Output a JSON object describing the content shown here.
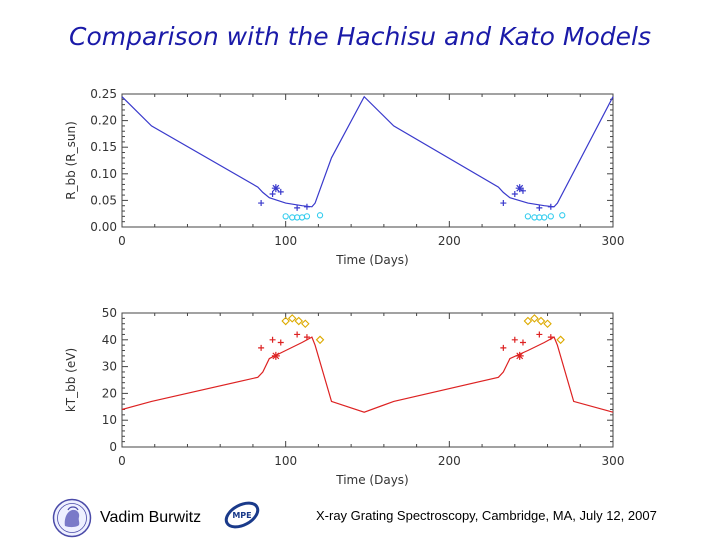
{
  "page": {
    "title": "Comparison with the Hachisu and Kato Models"
  },
  "footer": {
    "author": "Vadim Burwitz",
    "conference": "X-ray Grating Spectroscopy, Cambridge, MA, July 12, 2007",
    "logo_right_text": "MPE"
  },
  "colors": {
    "title": "#1a1aa8",
    "top_model": "#3a3acc",
    "bottom_model": "#dd2222",
    "cyan": "#33ccee",
    "gold": "#ddaa00"
  },
  "chart_data": [
    {
      "type": "line",
      "xlabel": "Time (Days)",
      "ylabel": "R_bb (R_sun)",
      "xlim": [
        0,
        300
      ],
      "ylim": [
        0,
        0.25
      ],
      "xticks": [
        "0",
        "100",
        "200",
        "300"
      ],
      "yticks": [
        "0.00",
        "0.05",
        "0.10",
        "0.15",
        "0.20",
        "0.25"
      ],
      "grid": false,
      "series": [
        {
          "style": "line",
          "color": "#3a3acc",
          "x": [
            0,
            18,
            83,
            86,
            90,
            100,
            110,
            116,
            118,
            128,
            148,
            166,
            230,
            233,
            237,
            248,
            258,
            264,
            266,
            300
          ],
          "y": [
            0.245,
            0.19,
            0.075,
            0.065,
            0.055,
            0.045,
            0.04,
            0.038,
            0.045,
            0.13,
            0.245,
            0.19,
            0.075,
            0.065,
            0.055,
            0.045,
            0.04,
            0.038,
            0.045,
            0.245
          ]
        },
        {
          "style": "plus",
          "color": "#3a3acc",
          "x": [
            85,
            92,
            97,
            107,
            113,
            233,
            240,
            245,
            255,
            262
          ],
          "y": [
            0.045,
            0.062,
            0.066,
            0.036,
            0.038,
            0.045,
            0.062,
            0.068,
            0.036,
            0.038
          ]
        },
        {
          "style": "asterisk",
          "color": "#3a3acc",
          "x": [
            94,
            243
          ],
          "y": [
            0.073,
            0.073
          ]
        },
        {
          "style": "circle",
          "color": "#33ccee",
          "x": [
            100,
            104,
            107,
            110,
            113,
            121,
            248,
            252,
            255,
            258,
            262,
            269
          ],
          "y": [
            0.02,
            0.018,
            0.018,
            0.018,
            0.02,
            0.022,
            0.02,
            0.018,
            0.018,
            0.018,
            0.02,
            0.022
          ]
        }
      ]
    },
    {
      "type": "line",
      "xlabel": "Time (Days)",
      "ylabel": "kT_bb (eV)",
      "xlim": [
        0,
        300
      ],
      "ylim": [
        0,
        50
      ],
      "xticks": [
        "0",
        "100",
        "200",
        "300"
      ],
      "yticks": [
        "0",
        "10",
        "20",
        "30",
        "40",
        "50"
      ],
      "grid": false,
      "series": [
        {
          "style": "line",
          "color": "#dd2222",
          "x": [
            0,
            18,
            83,
            86,
            90,
            100,
            110,
            116,
            118,
            128,
            148,
            166,
            230,
            233,
            237,
            248,
            258,
            264,
            266,
            276,
            300
          ],
          "y": [
            14,
            17,
            26,
            28,
            33,
            36,
            39,
            41,
            38,
            17,
            13,
            17,
            26,
            28,
            33,
            36,
            39,
            41,
            38,
            17,
            13
          ]
        },
        {
          "style": "plus",
          "color": "#dd2222",
          "x": [
            85,
            92,
            97,
            107,
            113,
            233,
            240,
            245,
            255,
            262
          ],
          "y": [
            37,
            40,
            39,
            42,
            41,
            37,
            40,
            39,
            42,
            41
          ]
        },
        {
          "style": "asterisk",
          "color": "#dd2222",
          "x": [
            94,
            243
          ],
          "y": [
            34,
            34
          ]
        },
        {
          "style": "diamond",
          "color": "#ddaa00",
          "x": [
            100,
            104,
            108,
            112,
            121,
            248,
            252,
            256,
            260,
            268
          ],
          "y": [
            47,
            48,
            47,
            46,
            40,
            47,
            48,
            47,
            46,
            40
          ]
        }
      ]
    }
  ]
}
